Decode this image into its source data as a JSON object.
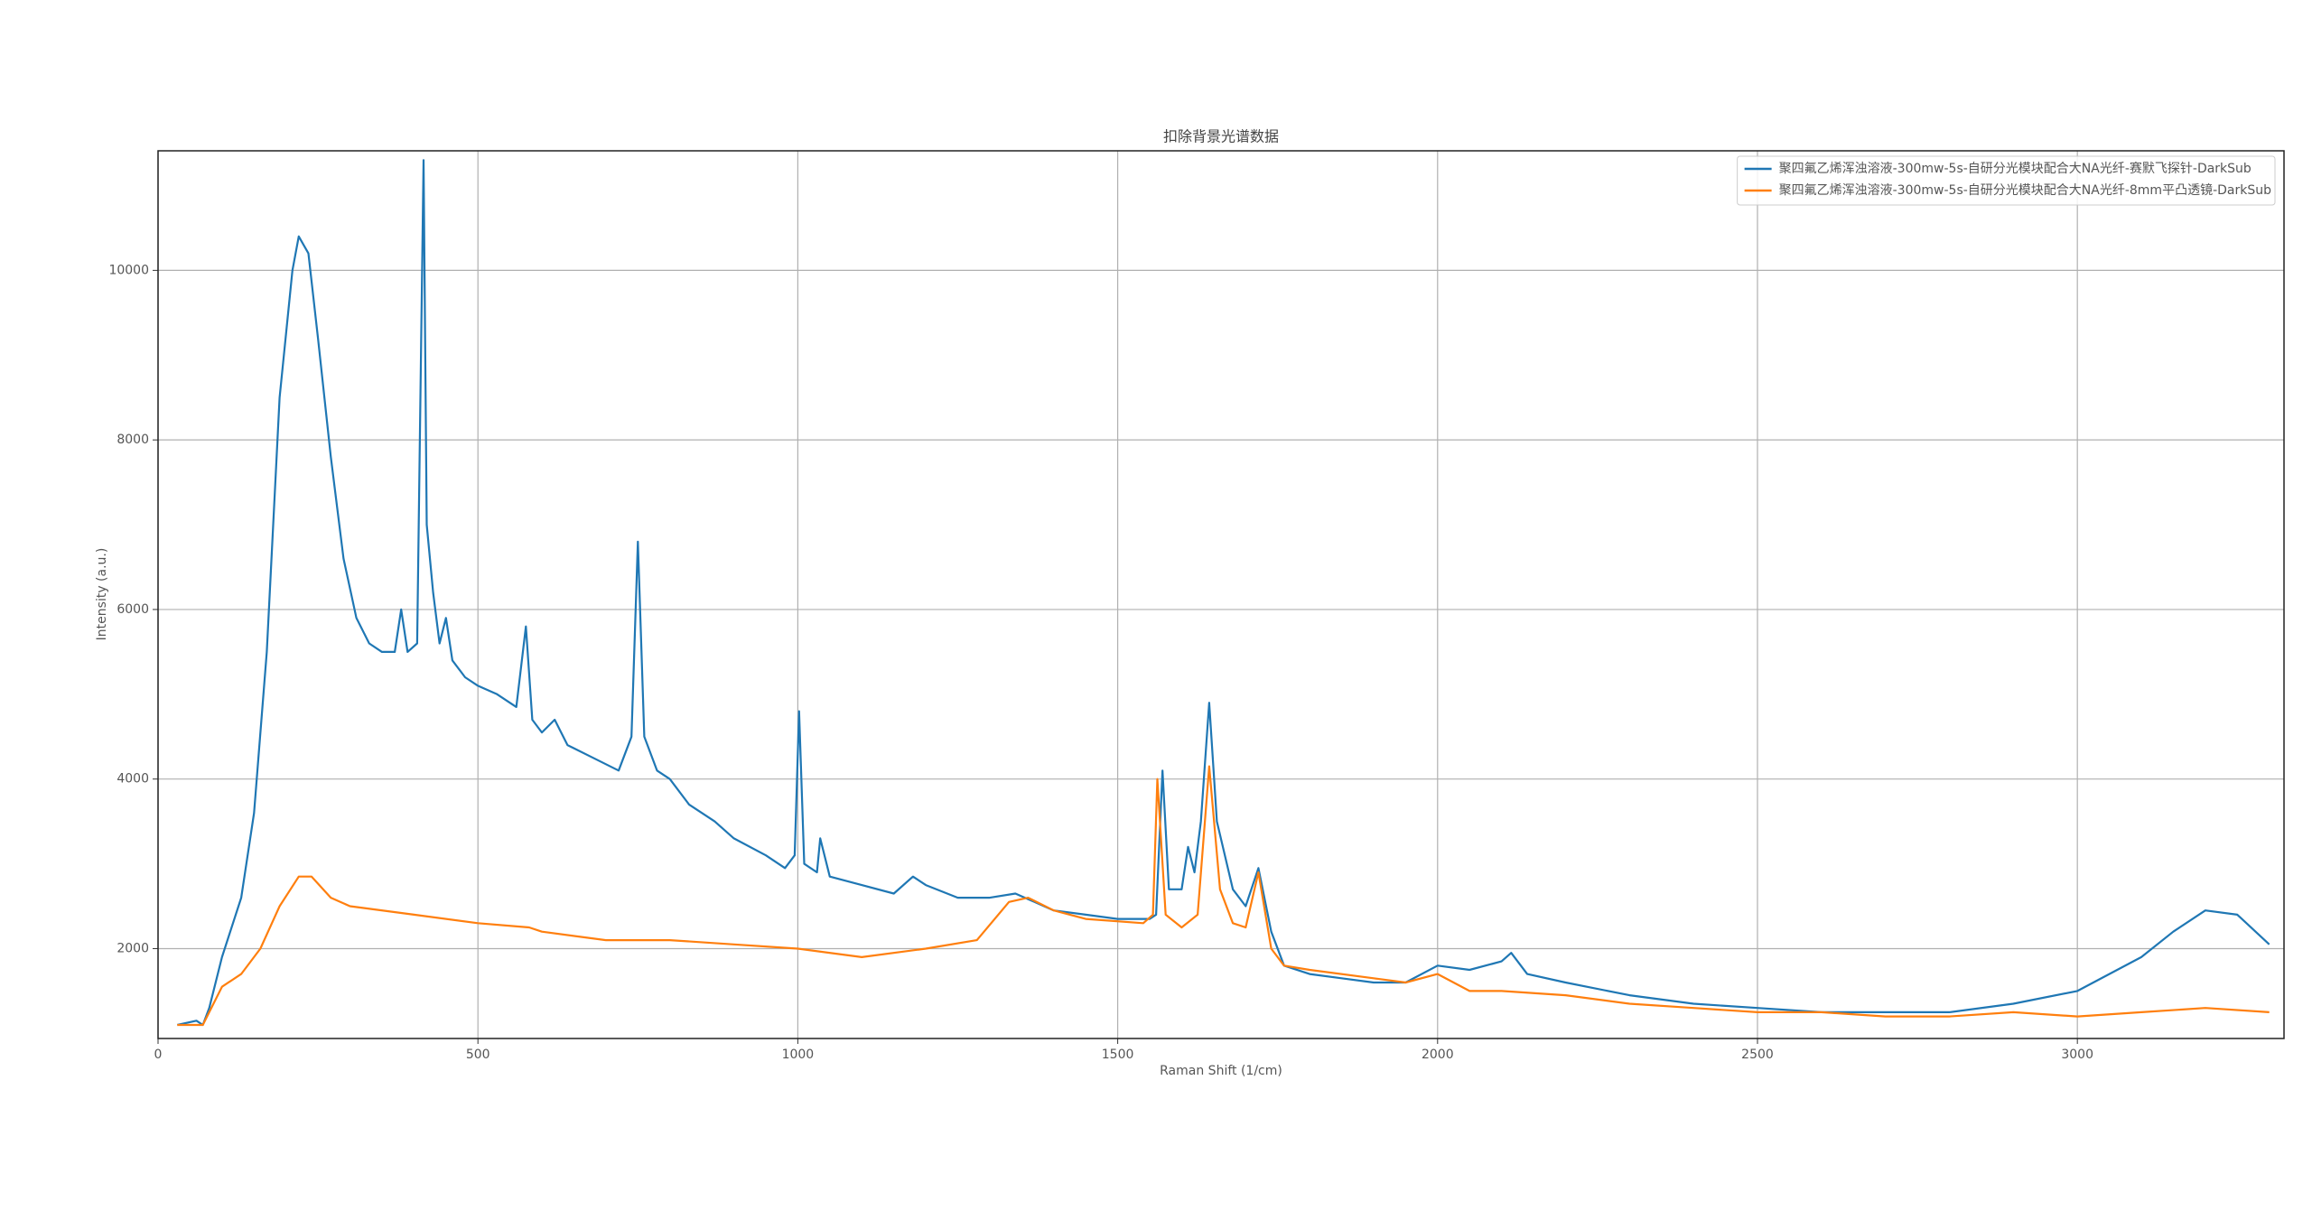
{
  "chart_data": {
    "type": "line",
    "title": "扣除背景光谱数据",
    "xlabel": "Raman Shift (1/cm)",
    "ylabel": "Intensity (a.u.)",
    "xlim": [
      0,
      3323
    ],
    "ylim": [
      940,
      11410
    ],
    "xticks": [
      0,
      500,
      1000,
      1500,
      2000,
      2500,
      3000
    ],
    "yticks": [
      2000,
      4000,
      6000,
      8000,
      10000
    ],
    "grid": true,
    "legend": "upper right",
    "series": [
      {
        "name": "聚四氟乙烯浑浊溶液-300mw-5s-自研分光模块配合大NA光纤-赛默飞探针-DarkSub",
        "color": "#1f77b4",
        "x": [
          30,
          60,
          70,
          80,
          100,
          130,
          150,
          170,
          190,
          210,
          220,
          235,
          250,
          270,
          290,
          310,
          330,
          350,
          370,
          380,
          390,
          405,
          415,
          420,
          430,
          440,
          450,
          460,
          480,
          500,
          530,
          560,
          575,
          585,
          600,
          620,
          640,
          680,
          720,
          740,
          750,
          760,
          780,
          800,
          830,
          870,
          900,
          950,
          980,
          995,
          1002,
          1010,
          1030,
          1035,
          1050,
          1100,
          1150,
          1180,
          1200,
          1250,
          1300,
          1340,
          1400,
          1450,
          1500,
          1550,
          1560,
          1570,
          1580,
          1600,
          1610,
          1620,
          1630,
          1643,
          1655,
          1680,
          1700,
          1720,
          1740,
          1760,
          1800,
          1850,
          1900,
          1950,
          2000,
          2050,
          2100,
          2115,
          2140,
          2200,
          2300,
          2400,
          2500,
          2600,
          2700,
          2800,
          2900,
          3000,
          3100,
          3150,
          3200,
          3250,
          3300
        ],
        "values": [
          1100,
          1150,
          1100,
          1300,
          1900,
          2600,
          3600,
          5500,
          8500,
          10000,
          10400,
          10200,
          9200,
          7800,
          6600,
          5900,
          5600,
          5500,
          5500,
          6000,
          5500,
          5600,
          11300,
          7000,
          6200,
          5600,
          5900,
          5400,
          5200,
          5100,
          5000,
          4850,
          5800,
          4700,
          4550,
          4700,
          4400,
          4250,
          4100,
          4500,
          6800,
          4500,
          4100,
          4000,
          3700,
          3500,
          3300,
          3100,
          2950,
          3100,
          4800,
          3000,
          2900,
          3300,
          2850,
          2750,
          2650,
          2850,
          2750,
          2600,
          2600,
          2650,
          2450,
          2400,
          2350,
          2350,
          2400,
          4100,
          2700,
          2700,
          3200,
          2900,
          3500,
          4900,
          3500,
          2700,
          2500,
          2950,
          2200,
          1800,
          1700,
          1650,
          1600,
          1600,
          1800,
          1750,
          1850,
          1950,
          1700,
          1600,
          1450,
          1350,
          1300,
          1250,
          1250,
          1250,
          1350,
          1500,
          1900,
          2200,
          2450,
          2400,
          2050
        ]
      },
      {
        "name": "聚四氟乙烯浑浊溶液-300mw-5s-自研分光模块配合大NA光纤-8mm平凸透镜-DarkSub",
        "color": "#ff7f0e",
        "x": [
          30,
          70,
          100,
          130,
          160,
          190,
          220,
          240,
          270,
          300,
          400,
          500,
          580,
          600,
          700,
          800,
          900,
          1000,
          1100,
          1200,
          1280,
          1330,
          1360,
          1400,
          1450,
          1540,
          1555,
          1562,
          1575,
          1600,
          1625,
          1643,
          1660,
          1680,
          1700,
          1720,
          1740,
          1760,
          1800,
          1900,
          1950,
          2000,
          2050,
          2100,
          2200,
          2300,
          2400,
          2500,
          2600,
          2700,
          2800,
          2900,
          3000,
          3100,
          3200,
          3300
        ],
        "values": [
          1100,
          1100,
          1550,
          1700,
          2000,
          2500,
          2850,
          2850,
          2600,
          2500,
          2400,
          2300,
          2250,
          2200,
          2100,
          2100,
          2050,
          2000,
          1900,
          2000,
          2100,
          2550,
          2600,
          2450,
          2350,
          2300,
          2400,
          4000,
          2400,
          2250,
          2400,
          4150,
          2700,
          2300,
          2250,
          2900,
          2000,
          1800,
          1750,
          1650,
          1600,
          1700,
          1500,
          1500,
          1450,
          1350,
          1300,
          1250,
          1250,
          1200,
          1200,
          1250,
          1200,
          1250,
          1300,
          1250
        ]
      }
    ]
  }
}
